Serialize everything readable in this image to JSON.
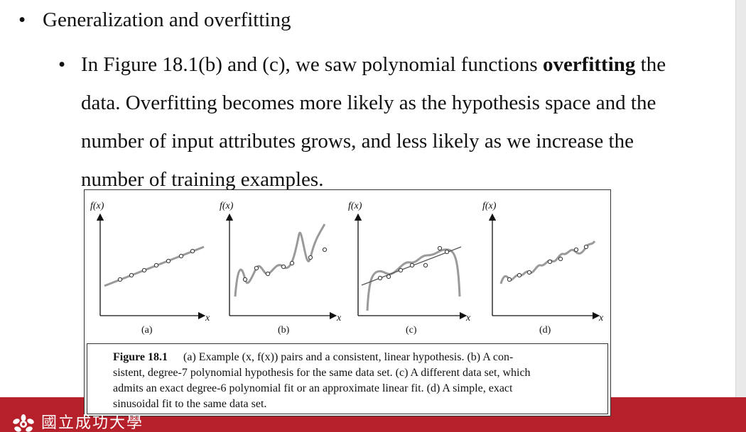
{
  "bullets": {
    "level1": "Generalization and overfitting",
    "level2_lines": [
      [
        "In Figure 18.1(b) and (c), we saw polynomial functions ",
        "overfitting",
        " the"
      ],
      "data. Overfitting becomes more likely as the hypothesis space and the",
      "number of input attributes grows, and less likely as we increase the",
      "number of training examples."
    ]
  },
  "figure": {
    "panels": [
      {
        "id": "a",
        "ylabel": "f(x)",
        "xlabel": "x",
        "label": "(a)"
      },
      {
        "id": "b",
        "ylabel": "f(x)",
        "xlabel": "x",
        "label": "(b)"
      },
      {
        "id": "c",
        "ylabel": "f(x)",
        "xlabel": "x",
        "label": "(c)"
      },
      {
        "id": "d",
        "ylabel": "f(x)",
        "xlabel": "x",
        "label": "(d)"
      }
    ],
    "caption": {
      "label": "Figure 18.1",
      "lines": [
        "(a) Example (x, f(x)) pairs and a consistent, linear hypothesis. (b) A con-",
        "sistent, degree-7 polynomial hypothesis for the same data set. (c) A different data set, which",
        "admits an exact degree-6 polynomial fit or an approximate linear fit. (d) A simple, exact",
        "sinusoidal fit to the same data set."
      ]
    }
  },
  "footer": {
    "logo_text": "國立成功大學"
  },
  "colors": {
    "band": "#b5202a",
    "curve": "#9a9a9a"
  }
}
